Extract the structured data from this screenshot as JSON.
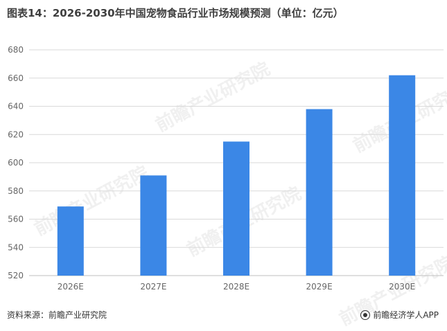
{
  "title": "图表14：2026-2030年中国宠物食品行业市场规模预测（单位：亿元）",
  "source_left": "资料来源：前瞻产业研究院",
  "source_right": "前瞻经济学人APP",
  "watermark": "前瞻产业研究院",
  "colors": {
    "bar": "#3b87e6",
    "grid": "#d9d9d9",
    "axis": "#bfbfbf"
  },
  "chart_data": {
    "type": "bar",
    "title": "图表14：2026-2030年中国宠物食品行业市场规模预测（单位：亿元）",
    "xlabel": "",
    "ylabel": "",
    "categories": [
      "2026E",
      "2027E",
      "2028E",
      "2029E",
      "2030E"
    ],
    "values": [
      569,
      591,
      615,
      638,
      662
    ],
    "ylim": [
      520,
      680
    ],
    "yticks": [
      520,
      540,
      560,
      580,
      600,
      620,
      640,
      660,
      680
    ],
    "grid": true,
    "legend": "none"
  }
}
